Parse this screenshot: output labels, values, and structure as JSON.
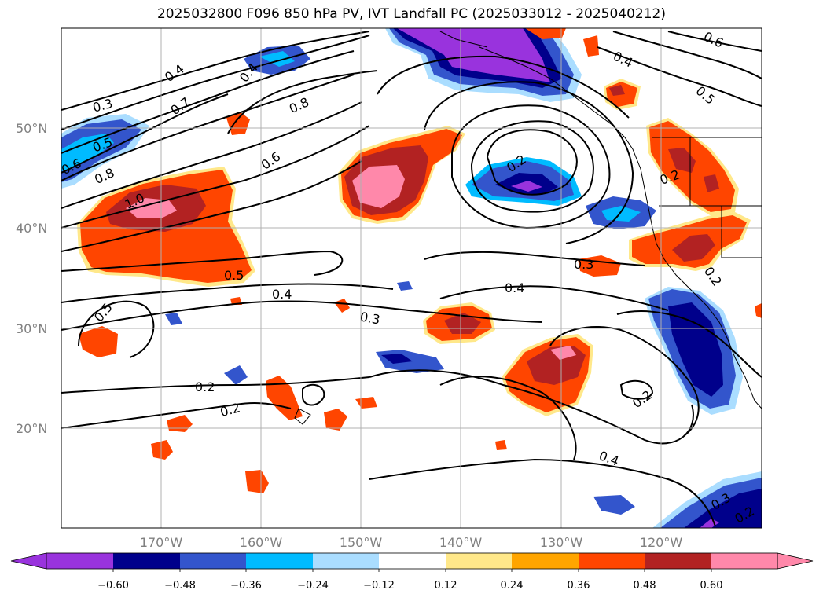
{
  "title": "2025032800 F096 850 hPa PV, IVT Landfall PC (2025033012 - 2025040212)",
  "lat_labels": [
    "50°N",
    "40°N",
    "30°N",
    "20°N"
  ],
  "lon_labels": [
    "170°W",
    "160°W",
    "150°W",
    "140°W",
    "130°W",
    "120°W"
  ],
  "colorbar": {
    "ticks": [
      "−0.60",
      "−0.48",
      "−0.36",
      "−0.24",
      "−0.12",
      "0.12",
      "0.24",
      "0.36",
      "0.48",
      "0.60"
    ],
    "colors": [
      "#9933dd",
      "#00008b",
      "#3355cc",
      "#00bbff",
      "#aaddff",
      "#ffffff",
      "#ffe88a",
      "#ffa500",
      "#ff4500",
      "#b22222",
      "#ff88aa",
      "#ff88aa"
    ]
  },
  "contour_labels": [
    "0.4",
    "0.3",
    "0.7",
    "0.5",
    "0.6",
    "0.8",
    "1.0",
    "0.4",
    "0.8",
    "0.6",
    "0.6",
    "0.4",
    "0.5",
    "0.3",
    "0.2",
    "0.5",
    "0.4",
    "0.3",
    "0.4",
    "0.5",
    "0.2",
    "0.2",
    "0.4",
    "0.2",
    "0.2",
    "0.3",
    "0.2",
    "0.2"
  ],
  "fill_colors": {
    "purple": "#9933dd",
    "navy": "#00008b",
    "blue": "#3355cc",
    "cyan": "#00bbff",
    "lightblue": "#aaddff",
    "yellow": "#ffe88a",
    "orange": "#ffa500",
    "redorange": "#ff4500",
    "firebrick": "#b22222",
    "pink": "#ff88aa"
  }
}
